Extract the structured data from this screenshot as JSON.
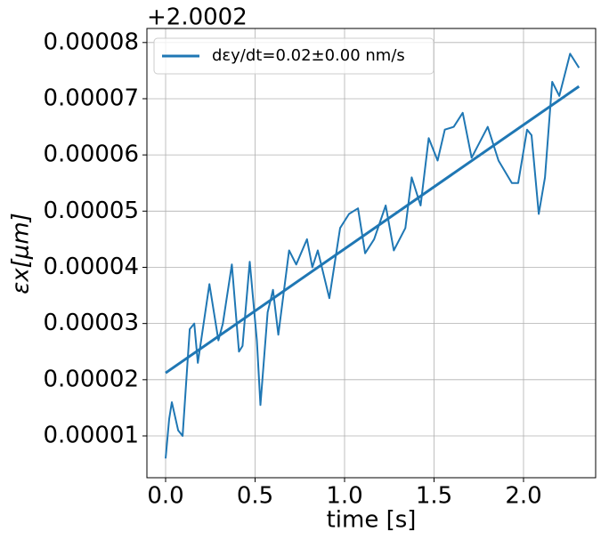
{
  "chart_data": {
    "type": "line",
    "y_offset_label": "+2.0002",
    "x_label": "time [s]",
    "y_label": "εx[μm]",
    "xlim": [
      -0.1045,
      2.403
    ],
    "ylim": [
      2.56e-06,
      8.25e-05
    ],
    "xticks": [
      {
        "value": 0,
        "label": "0.0"
      },
      0.5,
      {
        "value": 1,
        "label": "1.0"
      },
      1.5,
      {
        "value": 2,
        "label": "2.0"
      }
    ],
    "yticks": [
      1e-05,
      2e-05,
      3e-05,
      4e-05,
      5e-05,
      6e-05,
      7e-05,
      8e-05
    ],
    "grid": true,
    "legend": "upper left",
    "series": [
      {
        "color": "#1f77b4",
        "x": [
          0,
          0.02,
          0.035,
          0.07,
          0.095,
          0.135,
          0.16,
          0.18,
          0.245,
          0.295,
          0.32,
          0.37,
          0.41,
          0.43,
          0.47,
          0.51,
          0.53,
          0.57,
          0.6,
          0.63,
          0.69,
          0.73,
          0.79,
          0.82,
          0.85,
          0.915,
          0.975,
          1.025,
          1.075,
          1.115,
          1.165,
          1.23,
          1.275,
          1.34,
          1.375,
          1.425,
          1.47,
          1.52,
          1.56,
          1.61,
          1.66,
          1.71,
          1.8,
          1.86,
          1.935,
          1.97,
          2.02,
          2.045,
          2.085,
          2.12,
          2.16,
          2.2,
          2.26,
          2.31
        ],
        "values": [
          6e-06,
          1.3e-05,
          1.6e-05,
          1.1e-05,
          1e-05,
          2.9e-05,
          3e-05,
          2.3e-05,
          3.7e-05,
          2.7e-05,
          3e-05,
          4.05e-05,
          2.5e-05,
          2.6e-05,
          4.1e-05,
          2.7e-05,
          1.55e-05,
          3.2e-05,
          3.6e-05,
          2.8e-05,
          4.3e-05,
          4.05e-05,
          4.5e-05,
          4e-05,
          4.3e-05,
          3.45e-05,
          4.7e-05,
          4.95e-05,
          5.05e-05,
          4.25e-05,
          4.5e-05,
          5.1e-05,
          4.3e-05,
          4.7e-05,
          5.6e-05,
          5.1e-05,
          6.3e-05,
          5.9e-05,
          6.45e-05,
          6.5e-05,
          6.75e-05,
          5.95e-05,
          6.5e-05,
          5.9e-05,
          5.5e-05,
          5.5e-05,
          6.45e-05,
          6.35e-05,
          4.95e-05,
          5.6e-05,
          7.3e-05,
          7.05e-05,
          7.8e-05,
          7.55e-05
        ]
      },
      {
        "name": "dεy/dt=0.02±0.00 nm/s",
        "color": "#1f77b4",
        "x": [
          0,
          2.31
        ],
        "values": [
          2.12e-05,
          7.22e-05
        ]
      }
    ]
  }
}
